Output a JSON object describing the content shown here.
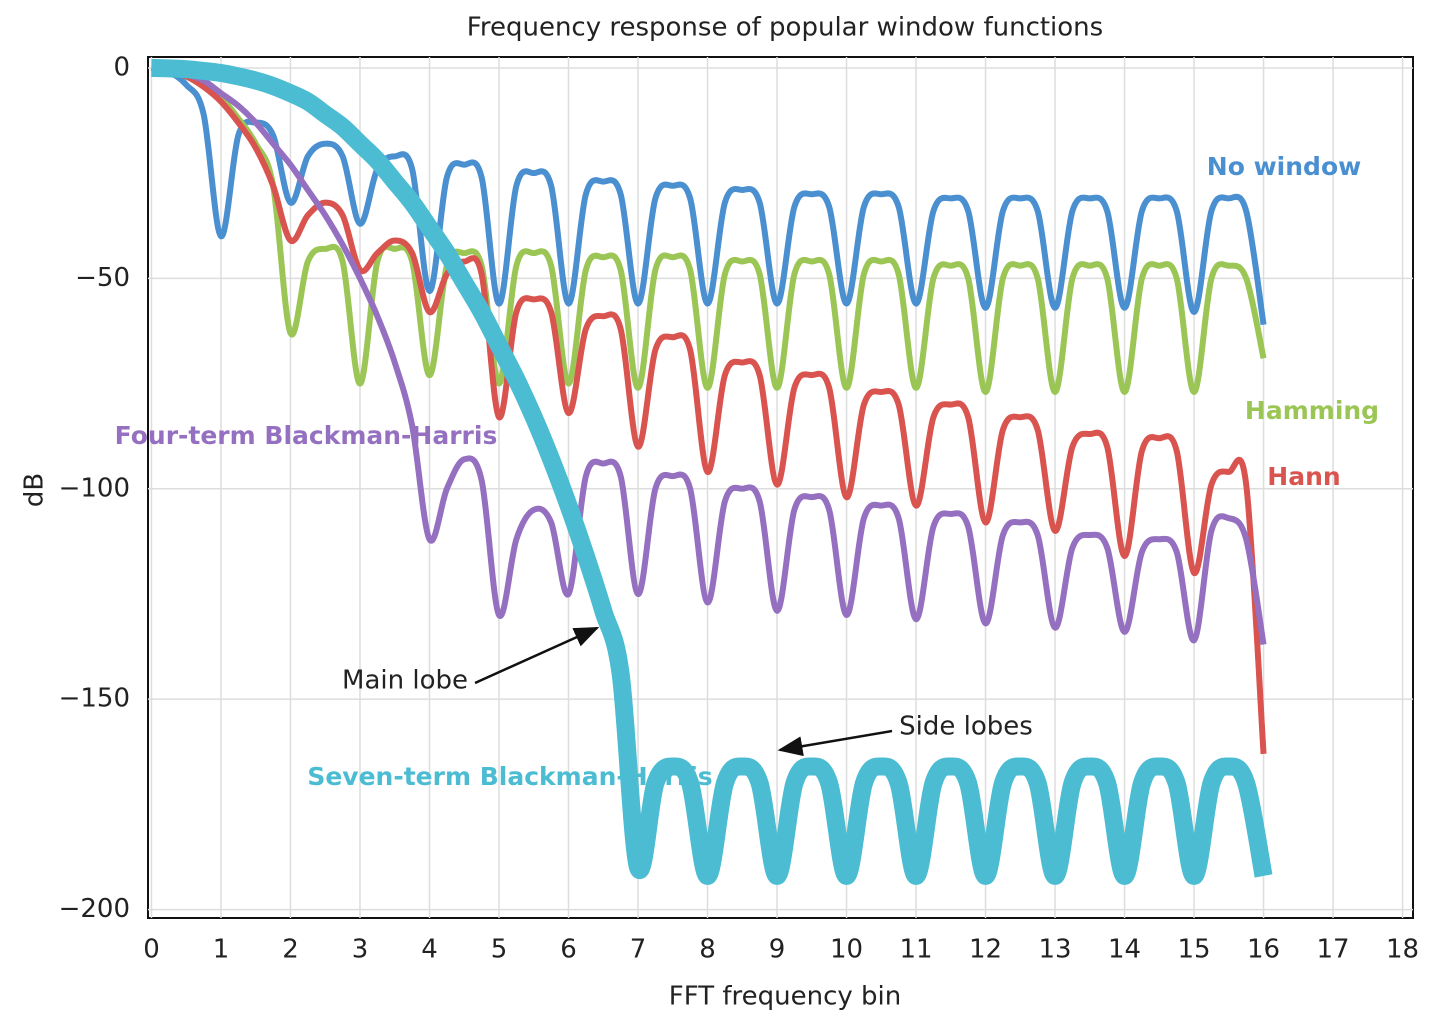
{
  "chart_data": {
    "type": "line",
    "title": "Frequency response of popular window functions",
    "x_label": "FFT frequency bin",
    "y_label": "dB",
    "xlim": [
      -0.05,
      18.15
    ],
    "xticks": [
      0,
      1,
      2,
      3,
      4,
      5,
      6,
      7,
      8,
      9,
      10,
      11,
      12,
      13,
      14,
      15,
      16,
      17,
      18
    ],
    "ylim": [
      -202,
      2.6
    ],
    "yticks": [
      0,
      {
        "value": -50,
        "label": "−50"
      },
      {
        "value": -100,
        "label": "−100"
      },
      {
        "value": -150,
        "label": "−150"
      },
      {
        "value": -200,
        "label": "−200"
      }
    ],
    "grid": true,
    "x": [
      0,
      0.25,
      0.5,
      0.75,
      1,
      1.25,
      1.5,
      1.75,
      2,
      2.25,
      2.5,
      2.75,
      3,
      3.25,
      3.5,
      3.75,
      4,
      4.25,
      4.5,
      4.75,
      5,
      5.25,
      5.5,
      5.75,
      6,
      6.25,
      6.5,
      6.75,
      7,
      7.25,
      7.5,
      7.75,
      8,
      8.25,
      8.5,
      8.75,
      9,
      9.25,
      9.5,
      9.75,
      10,
      10.25,
      10.5,
      10.75,
      11,
      11.25,
      11.5,
      11.75,
      12,
      12.25,
      12.5,
      12.75,
      13,
      13.25,
      13.5,
      13.75,
      14,
      14.25,
      14.5,
      14.75,
      15,
      15.25,
      15.5,
      15.75,
      16
    ],
    "series": [
      {
        "name": "No window",
        "color": "#4a8fd0",
        "values": [
          0,
          -1,
          -4,
          -11,
          -40,
          -16,
          -13,
          -16,
          -32,
          -21,
          -18,
          -21,
          -37,
          -24,
          -21,
          -24,
          -53,
          -26,
          -23,
          -26,
          -56,
          -28,
          -25,
          -28,
          -56,
          -30,
          -27,
          -30,
          -56,
          -31,
          -28,
          -31,
          -56,
          -32,
          -29,
          -32,
          -56,
          -33,
          -30,
          -33,
          -56,
          -33,
          -30,
          -33,
          -56,
          -34,
          -31,
          -34,
          -57,
          -34,
          -31,
          -34,
          -57,
          -34,
          -31,
          -34,
          -57,
          -34,
          -31,
          -34,
          -58,
          -34,
          -31,
          -34,
          -61
        ]
      },
      {
        "name": "Hamming",
        "color": "#9bc655",
        "values": [
          0,
          -0.5,
          -2,
          -4,
          -7,
          -12,
          -18,
          -28,
          -63,
          -46,
          -43,
          -46,
          -75,
          -46,
          -43,
          -46,
          -73,
          -47,
          -44,
          -47,
          -75,
          -47,
          -44,
          -47,
          -75,
          -48,
          -45,
          -48,
          -76,
          -48,
          -45,
          -48,
          -76,
          -49,
          -46,
          -49,
          -76,
          -49,
          -46,
          -49,
          -76,
          -49,
          -46,
          -49,
          -76,
          -50,
          -47,
          -50,
          -77,
          -50,
          -47,
          -50,
          -77,
          -50,
          -47,
          -50,
          -77,
          -50,
          -47,
          -50,
          -77,
          -50,
          -47,
          -50,
          -69
        ]
      },
      {
        "name": "Hann",
        "color": "#d9534f",
        "values": [
          0,
          -0.5,
          -2,
          -4.5,
          -8,
          -13,
          -19,
          -28,
          -41,
          -35,
          -32,
          -35,
          -48,
          -44,
          -41,
          -44,
          -58,
          -49,
          -46,
          -49,
          -83,
          -58,
          -55,
          -58,
          -82,
          -62,
          -59,
          -62,
          -90,
          -67,
          -64,
          -67,
          -96,
          -73,
          -70,
          -73,
          -99,
          -76,
          -73,
          -76,
          -102,
          -80,
          -77,
          -80,
          -104,
          -83,
          -80,
          -83,
          -108,
          -86,
          -83,
          -86,
          -110,
          -90,
          -87,
          -90,
          -116,
          -91,
          -88,
          -91,
          -120,
          -99,
          -96,
          -99,
          -163
        ]
      },
      {
        "name": "Four-term Blackman-Harris",
        "color": "#9570c0",
        "values": [
          0,
          0,
          -1.5,
          -3,
          -6,
          -9,
          -13,
          -18,
          -23,
          -29,
          -35,
          -42,
          -50,
          -59,
          -70,
          -85,
          -112,
          -100,
          -93,
          -98,
          -130,
          -112,
          -105,
          -108,
          -125,
          -97,
          -94,
          -97,
          -125,
          -100,
          -97,
          -100,
          -127,
          -103,
          -100,
          -103,
          -129,
          -105,
          -102,
          -105,
          -130,
          -107,
          -104,
          -107,
          -131,
          -109,
          -106,
          -109,
          -132,
          -111,
          -108,
          -111,
          -133,
          -114,
          -111,
          -114,
          -134,
          -115,
          -112,
          -115,
          -136,
          -110,
          -107,
          -112,
          -137
        ]
      },
      {
        "name": "Seven-term Blackman-Harris",
        "color": "#4bbcd2",
        "values": [
          0,
          -0.1,
          -0.3,
          -0.7,
          -1.2,
          -2,
          -3,
          -4.3,
          -6,
          -8,
          -11,
          -14,
          -18,
          -22,
          -27,
          -32,
          -38,
          -44,
          -51,
          -58,
          -66,
          -74,
          -83,
          -93,
          -104,
          -116,
          -129,
          -144,
          -190,
          -170,
          -166,
          -170,
          -192,
          -170,
          -166,
          -170,
          -192,
          -170,
          -166,
          -170,
          -192,
          -170,
          -166,
          -170,
          -192,
          -170,
          -166,
          -170,
          -192,
          -170,
          -166,
          -170,
          -192,
          -170,
          -166,
          -170,
          -192,
          -170,
          -166,
          -170,
          -192,
          -170,
          -166,
          -170,
          -192
        ]
      }
    ],
    "annotations": [
      {
        "text": "Main lobe"
      },
      {
        "text": "Side lobes"
      }
    ]
  }
}
